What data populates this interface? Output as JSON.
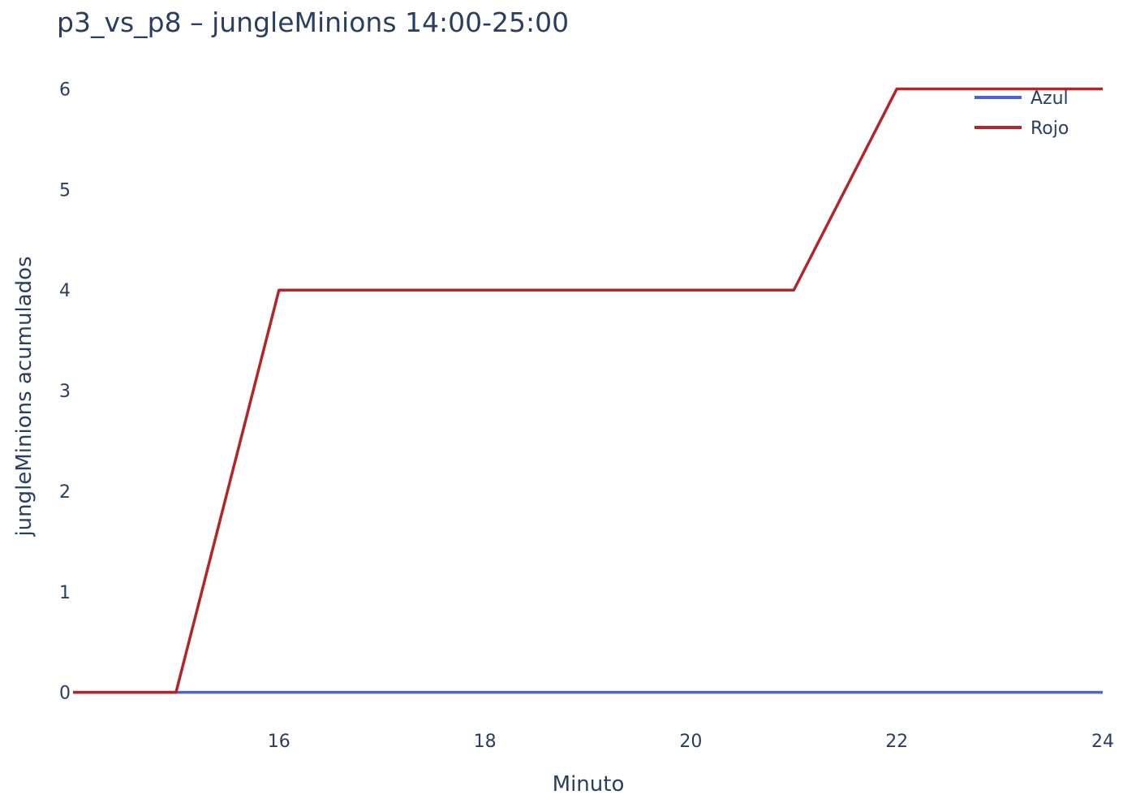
{
  "chart_data": {
    "type": "line",
    "title": "p3_vs_p8 – jungleMinions 14:00-25:00",
    "xlabel": "Minuto",
    "ylabel": "jungleMinions acumulados",
    "xlim": [
      14,
      24
    ],
    "ylim": [
      -0.35,
      6.4
    ],
    "x_ticks": [
      16,
      18,
      20,
      22,
      24
    ],
    "y_ticks": [
      0,
      1,
      2,
      3,
      4,
      5,
      6
    ],
    "grid": false,
    "legend_position": "top-right",
    "series": [
      {
        "name": "Azul",
        "color": "#4c63d2",
        "x": [
          14,
          15,
          16,
          17,
          18,
          19,
          20,
          21,
          22,
          23,
          24
        ],
        "y": [
          0,
          0,
          0,
          0,
          0,
          0,
          0,
          0,
          0,
          0,
          0
        ]
      },
      {
        "name": "Rojo",
        "color": "#b2262a",
        "x": [
          14,
          15,
          16,
          17,
          18,
          19,
          20,
          21,
          22,
          23,
          24
        ],
        "y": [
          0,
          0,
          4,
          4,
          4,
          4,
          4,
          4,
          6,
          6,
          6
        ]
      }
    ]
  }
}
